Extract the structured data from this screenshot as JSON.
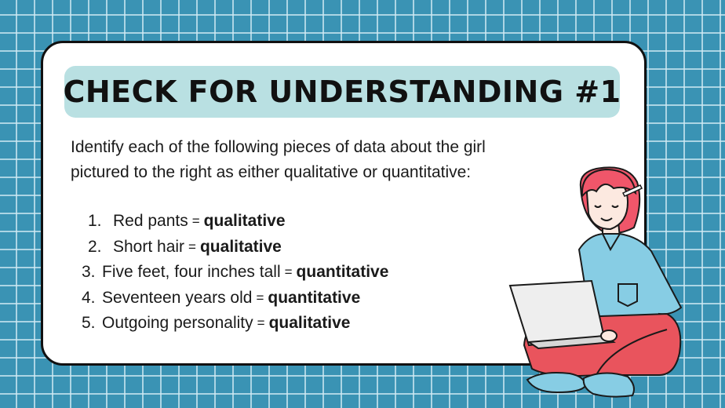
{
  "slide": {
    "title": "CHECK FOR UNDERSTANDING #1",
    "intro": "Identify each of the following pieces of data about the girl pictured to the right as either qualitative or quantitative:",
    "items": [
      {
        "num": "1.",
        "label": "Red pants",
        "eq": "=",
        "answer": "qualitative"
      },
      {
        "num": "2.",
        "label": "Short hair",
        "eq": "=",
        "answer": "qualitative"
      },
      {
        "num": "3.",
        "label": "Five feet, four inches tall",
        "eq": "=",
        "answer": "quantitative"
      },
      {
        "num": "4.",
        "label": "Seventeen years old",
        "eq": "=",
        "answer": "quantitative"
      },
      {
        "num": "5.",
        "label": "Outgoing personality",
        "eq": "=",
        "answer": "qualitative"
      }
    ],
    "colors": {
      "background": "#3a93b4",
      "title_bar": "#b9e0e2",
      "hair": "#f0566a",
      "shirt": "#87cde4",
      "pants": "#e9545d",
      "laptop": "#eeeeee"
    },
    "illustration": "girl-with-laptop"
  }
}
